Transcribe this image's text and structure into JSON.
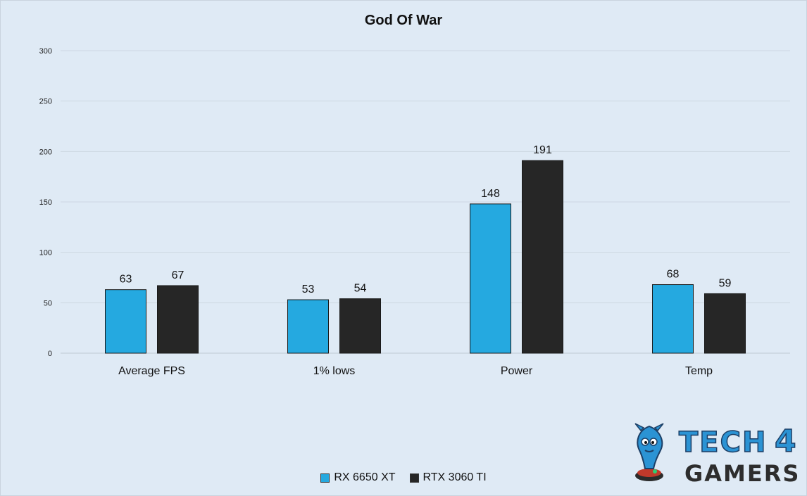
{
  "chart_data": {
    "type": "bar",
    "title": "God Of War",
    "categories": [
      "Average FPS",
      "1% lows",
      "Power",
      "Temp"
    ],
    "series": [
      {
        "name": "RX 6650 XT",
        "values": [
          63,
          53,
          148,
          68
        ],
        "color": "#25a9e0"
      },
      {
        "name": "RTX 3060 TI",
        "values": [
          67,
          54,
          191,
          59
        ],
        "color": "#262626"
      }
    ],
    "ylim": [
      0,
      300
    ],
    "yticks": [
      0,
      50,
      100,
      150,
      200,
      250,
      300
    ],
    "grid": true,
    "legend_position": "bottom",
    "data_labels": true
  },
  "watermark": {
    "lines": [
      "TECH",
      "4",
      "GAMERS"
    ]
  }
}
